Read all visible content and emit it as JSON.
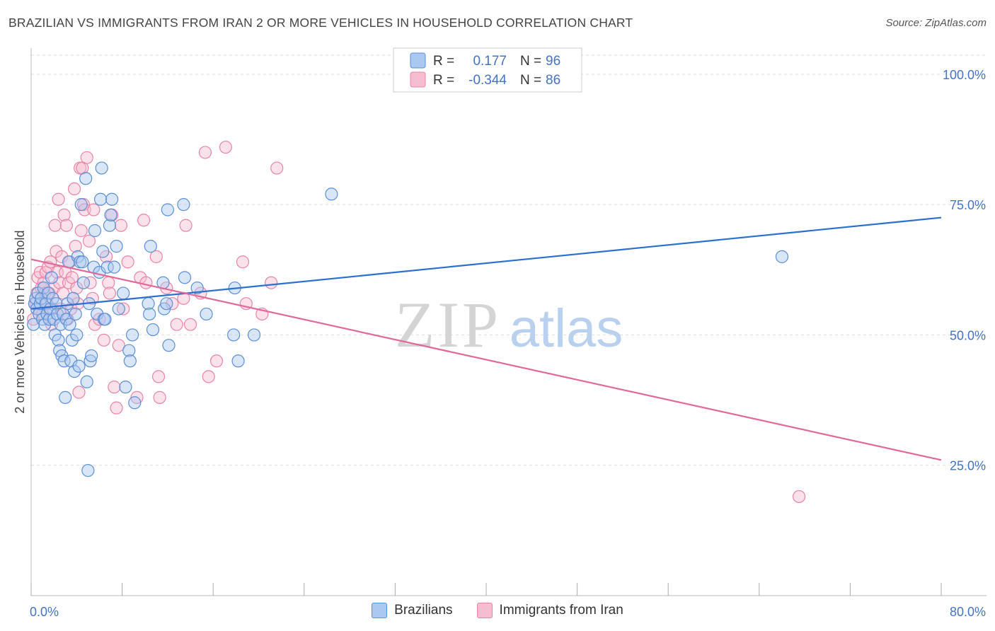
{
  "header": {
    "title": "BRAZILIAN VS IMMIGRANTS FROM IRAN 2 OR MORE VEHICLES IN HOUSEHOLD CORRELATION CHART",
    "source": "Source: ZipAtlas.com"
  },
  "watermark": {
    "zip": "ZIP",
    "atlas": "atlas"
  },
  "legend_top": {
    "rows": [
      {
        "r_label": "R =",
        "r_value": "0.177",
        "n_label": "N =",
        "n_value": "96"
      },
      {
        "r_label": "R =",
        "r_value": "-0.344",
        "n_label": "N =",
        "n_value": "86"
      }
    ]
  },
  "colors": {
    "blue_fill": "#aac8f0",
    "blue_stroke": "#5b8fd6",
    "blue_line": "#2b6fcf",
    "pink_fill": "#f6bcd0",
    "pink_stroke": "#e884a8",
    "pink_line": "#e0699a",
    "axis_text": "#4472c4",
    "grid": "#dddddd"
  },
  "chart_data": {
    "type": "scatter",
    "title": "BRAZILIAN VS IMMIGRANTS FROM IRAN 2 OR MORE VEHICLES IN HOUSEHOLD CORRELATION CHART",
    "xlabel": "",
    "ylabel": "2 or more Vehicles in Household",
    "xlim": [
      0,
      80
    ],
    "ylim": [
      0,
      105
    ],
    "x_tick_labels": [
      "0.0%",
      "80.0%"
    ],
    "y_ticks": [
      25,
      50,
      75,
      100
    ],
    "y_tick_labels": [
      "25.0%",
      "50.0%",
      "75.0%",
      "100.0%"
    ],
    "grid": true,
    "legend_placement": "bottom-center",
    "series": [
      {
        "name": "Brazilians",
        "R": 0.177,
        "N": 96,
        "trend": {
          "x": [
            0,
            80
          ],
          "y": [
            55.0,
            72.5
          ]
        },
        "points": [
          [
            0.2,
            52
          ],
          [
            0.3,
            56
          ],
          [
            0.4,
            57
          ],
          [
            0.5,
            55
          ],
          [
            0.6,
            58
          ],
          [
            0.7,
            54
          ],
          [
            0.8,
            56
          ],
          [
            0.9,
            57
          ],
          [
            1.0,
            53
          ],
          [
            1.1,
            59
          ],
          [
            1.2,
            52
          ],
          [
            1.3,
            56
          ],
          [
            1.4,
            54
          ],
          [
            1.5,
            58
          ],
          [
            1.6,
            53
          ],
          [
            1.7,
            55
          ],
          [
            1.8,
            61
          ],
          [
            1.9,
            57
          ],
          [
            2.0,
            53
          ],
          [
            2.1,
            50
          ],
          [
            2.2,
            56
          ],
          [
            2.3,
            54
          ],
          [
            2.4,
            49
          ],
          [
            2.5,
            47
          ],
          [
            2.6,
            52
          ],
          [
            2.7,
            46
          ],
          [
            2.8,
            54
          ],
          [
            2.9,
            45
          ],
          [
            3.0,
            38
          ],
          [
            3.1,
            53
          ],
          [
            3.2,
            56
          ],
          [
            3.3,
            64
          ],
          [
            3.4,
            52
          ],
          [
            3.5,
            45
          ],
          [
            3.6,
            49
          ],
          [
            3.7,
            57
          ],
          [
            3.8,
            43
          ],
          [
            3.9,
            54
          ],
          [
            4.0,
            50
          ],
          [
            4.1,
            65
          ],
          [
            4.2,
            44
          ],
          [
            4.3,
            64
          ],
          [
            4.4,
            75
          ],
          [
            4.5,
            64
          ],
          [
            4.6,
            60
          ],
          [
            4.8,
            80
          ],
          [
            4.9,
            41
          ],
          [
            5.0,
            24
          ],
          [
            5.1,
            56
          ],
          [
            5.2,
            45
          ],
          [
            5.3,
            46
          ],
          [
            5.5,
            63
          ],
          [
            5.6,
            70
          ],
          [
            5.8,
            54
          ],
          [
            6.0,
            62
          ],
          [
            6.1,
            76
          ],
          [
            6.2,
            82
          ],
          [
            6.3,
            66
          ],
          [
            6.4,
            53
          ],
          [
            6.5,
            53
          ],
          [
            6.7,
            63
          ],
          [
            6.9,
            71
          ],
          [
            7.0,
            73
          ],
          [
            7.1,
            76
          ],
          [
            7.3,
            63
          ],
          [
            7.5,
            67
          ],
          [
            7.7,
            55
          ],
          [
            8.1,
            58
          ],
          [
            8.3,
            40
          ],
          [
            8.6,
            47
          ],
          [
            8.7,
            45
          ],
          [
            8.9,
            50
          ],
          [
            9.1,
            37
          ],
          [
            10.3,
            56
          ],
          [
            10.4,
            54
          ],
          [
            10.5,
            67
          ],
          [
            10.7,
            51
          ],
          [
            11.6,
            60
          ],
          [
            11.7,
            55
          ],
          [
            11.9,
            56
          ],
          [
            12.0,
            74
          ],
          [
            12.1,
            48
          ],
          [
            13.4,
            75
          ],
          [
            13.5,
            61
          ],
          [
            14.6,
            59
          ],
          [
            15.4,
            54
          ],
          [
            17.8,
            50
          ],
          [
            17.9,
            59
          ],
          [
            18.2,
            45
          ],
          [
            19.6,
            50
          ],
          [
            26.4,
            77
          ],
          [
            66.0,
            65
          ]
        ]
      },
      {
        "name": "Immigrants from Iran",
        "R": -0.344,
        "N": 86,
        "trend": {
          "x": [
            0,
            80
          ],
          "y": [
            64.5,
            26.0
          ]
        },
        "points": [
          [
            0.2,
            53
          ],
          [
            0.4,
            56
          ],
          [
            0.5,
            58
          ],
          [
            0.6,
            61
          ],
          [
            0.7,
            55
          ],
          [
            0.8,
            62
          ],
          [
            0.9,
            59
          ],
          [
            1.0,
            54
          ],
          [
            1.1,
            60
          ],
          [
            1.2,
            58
          ],
          [
            1.3,
            62
          ],
          [
            1.4,
            56
          ],
          [
            1.5,
            63
          ],
          [
            1.6,
            58
          ],
          [
            1.7,
            64
          ],
          [
            1.8,
            52
          ],
          [
            1.9,
            55
          ],
          [
            2.0,
            59
          ],
          [
            2.1,
            71
          ],
          [
            2.2,
            66
          ],
          [
            2.3,
            62
          ],
          [
            2.4,
            76
          ],
          [
            2.5,
            60
          ],
          [
            2.6,
            55
          ],
          [
            2.7,
            65
          ],
          [
            2.8,
            58
          ],
          [
            2.9,
            73
          ],
          [
            3.0,
            62
          ],
          [
            3.1,
            71
          ],
          [
            3.2,
            53
          ],
          [
            3.3,
            60
          ],
          [
            3.4,
            64
          ],
          [
            3.5,
            55
          ],
          [
            3.6,
            61
          ],
          [
            3.7,
            57
          ],
          [
            3.8,
            78
          ],
          [
            3.9,
            67
          ],
          [
            4.0,
            59
          ],
          [
            4.1,
            56
          ],
          [
            4.2,
            39
          ],
          [
            4.3,
            82
          ],
          [
            4.4,
            70
          ],
          [
            4.5,
            82
          ],
          [
            4.6,
            75
          ],
          [
            4.7,
            74
          ],
          [
            4.9,
            84
          ],
          [
            5.1,
            68
          ],
          [
            5.2,
            60
          ],
          [
            5.4,
            57
          ],
          [
            5.5,
            74
          ],
          [
            5.6,
            52
          ],
          [
            6.0,
            53
          ],
          [
            6.4,
            49
          ],
          [
            6.6,
            65
          ],
          [
            6.8,
            60
          ],
          [
            6.9,
            58
          ],
          [
            7.1,
            73
          ],
          [
            7.3,
            40
          ],
          [
            7.5,
            36
          ],
          [
            7.7,
            48
          ],
          [
            7.9,
            71
          ],
          [
            8.1,
            55
          ],
          [
            8.5,
            64
          ],
          [
            9.3,
            38
          ],
          [
            9.6,
            61
          ],
          [
            9.9,
            72
          ],
          [
            10.1,
            60
          ],
          [
            11.0,
            65
          ],
          [
            11.2,
            42
          ],
          [
            11.3,
            38
          ],
          [
            11.9,
            59
          ],
          [
            12.4,
            56
          ],
          [
            12.8,
            52
          ],
          [
            13.4,
            57
          ],
          [
            13.6,
            71
          ],
          [
            14.0,
            52
          ],
          [
            14.9,
            58
          ],
          [
            15.3,
            85
          ],
          [
            15.6,
            42
          ],
          [
            16.3,
            45
          ],
          [
            17.1,
            86
          ],
          [
            18.6,
            64
          ],
          [
            18.9,
            56
          ],
          [
            20.3,
            54
          ],
          [
            21.1,
            60
          ],
          [
            21.6,
            82
          ],
          [
            67.5,
            19
          ]
        ]
      }
    ]
  },
  "bottom_legend": {
    "items": [
      {
        "label": "Brazilians"
      },
      {
        "label": "Immigrants from Iran"
      }
    ]
  }
}
